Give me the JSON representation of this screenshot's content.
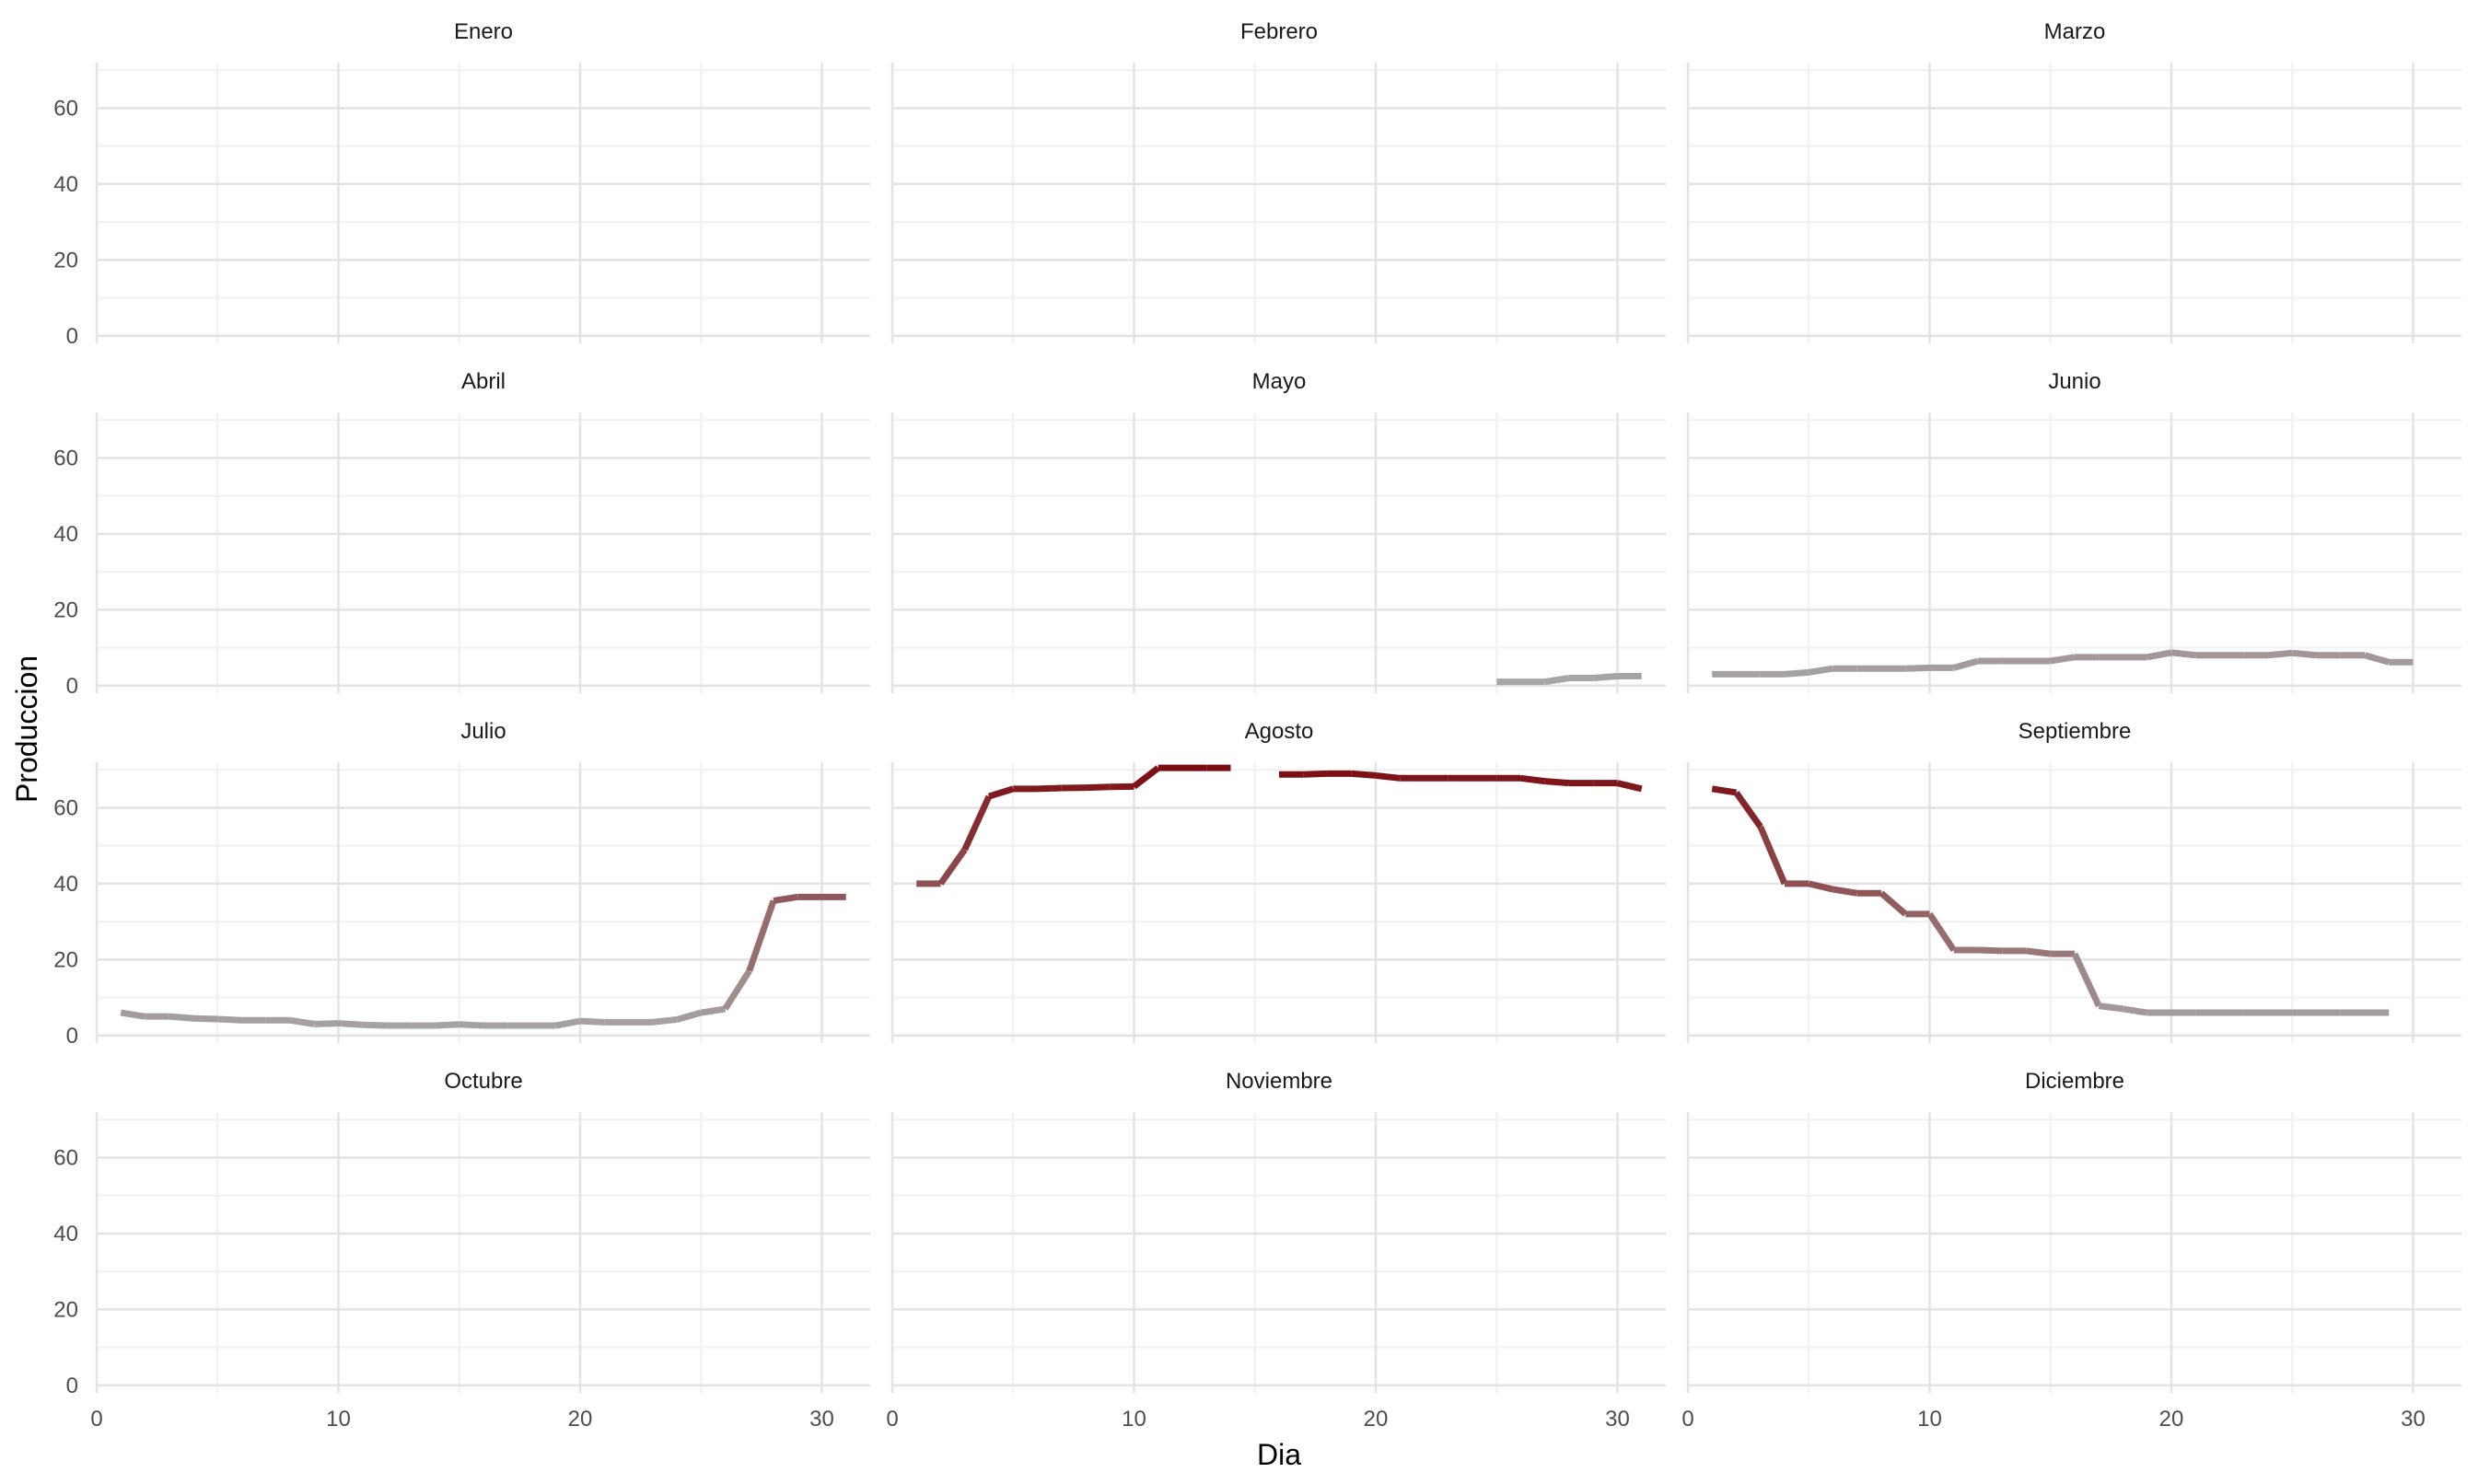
{
  "chart_data": {
    "type": "line",
    "facets": "wrap-3-columns",
    "xlabel": "Dia",
    "ylabel": "Produccion",
    "xlim": [
      0,
      32
    ],
    "ylim": [
      -2,
      72
    ],
    "x_ticks": [
      0,
      10,
      20,
      30
    ],
    "y_ticks": [
      0,
      20,
      40,
      60
    ],
    "grid": true,
    "color_scale": {
      "low": "#a8a8a8",
      "high": "#7a0c10",
      "domain": [
        0,
        71
      ]
    },
    "panels": [
      {
        "title": "Enero",
        "points": []
      },
      {
        "title": "Febrero",
        "points": []
      },
      {
        "title": "Marzo",
        "points": []
      },
      {
        "title": "Abril",
        "points": []
      },
      {
        "title": "Mayo",
        "points": [
          [
            25,
            1
          ],
          [
            26,
            1
          ],
          [
            27,
            1
          ],
          [
            28,
            2
          ],
          [
            29,
            2
          ],
          [
            30,
            2.5
          ],
          [
            31,
            2.5
          ]
        ]
      },
      {
        "title": "Junio",
        "points": [
          [
            1,
            3
          ],
          [
            2,
            3
          ],
          [
            3,
            3
          ],
          [
            4,
            3
          ],
          [
            5,
            3.5
          ],
          [
            6,
            4.5
          ],
          [
            7,
            4.5
          ],
          [
            8,
            4.5
          ],
          [
            9,
            4.5
          ],
          [
            10,
            4.7
          ],
          [
            11,
            4.7
          ],
          [
            12,
            6.5
          ],
          [
            13,
            6.5
          ],
          [
            14,
            6.5
          ],
          [
            15,
            6.5
          ],
          [
            16,
            7.5
          ],
          [
            17,
            7.5
          ],
          [
            18,
            7.5
          ],
          [
            19,
            7.5
          ],
          [
            20,
            8.7
          ],
          [
            21,
            8
          ],
          [
            22,
            8
          ],
          [
            23,
            8
          ],
          [
            24,
            8
          ],
          [
            25,
            8.6
          ],
          [
            26,
            8
          ],
          [
            27,
            8
          ],
          [
            28,
            8
          ],
          [
            29,
            6.2
          ],
          [
            30,
            6.2
          ]
        ]
      },
      {
        "title": "Julio",
        "points": [
          [
            1,
            6
          ],
          [
            2,
            5
          ],
          [
            3,
            5
          ],
          [
            4,
            4.5
          ],
          [
            5,
            4.3
          ],
          [
            6,
            4
          ],
          [
            7,
            4
          ],
          [
            8,
            4
          ],
          [
            9,
            3
          ],
          [
            10,
            3.2
          ],
          [
            11,
            2.8
          ],
          [
            12,
            2.6
          ],
          [
            13,
            2.6
          ],
          [
            14,
            2.6
          ],
          [
            15,
            2.9
          ],
          [
            16,
            2.6
          ],
          [
            17,
            2.6
          ],
          [
            18,
            2.6
          ],
          [
            19,
            2.6
          ],
          [
            20,
            3.8
          ],
          [
            21,
            3.5
          ],
          [
            22,
            3.5
          ],
          [
            23,
            3.5
          ],
          [
            24,
            4.2
          ],
          [
            25,
            6
          ],
          [
            26,
            7
          ],
          [
            27,
            17
          ],
          [
            28,
            35.5
          ],
          [
            29,
            36.5
          ],
          [
            30,
            36.5
          ],
          [
            31,
            36.5
          ]
        ]
      },
      {
        "title": "Agosto",
        "points": [
          [
            1,
            40
          ],
          [
            2,
            40
          ],
          [
            3,
            49
          ],
          [
            4,
            63
          ],
          [
            5,
            65
          ],
          [
            6,
            65
          ],
          [
            7,
            65.2
          ],
          [
            8,
            65.3
          ],
          [
            9,
            65.5
          ],
          [
            10,
            65.6
          ],
          [
            11,
            70.5
          ],
          [
            12,
            70.5
          ],
          [
            13,
            70.5
          ],
          [
            14,
            70.5
          ],
          [
            15,
            null
          ],
          [
            16,
            68.8
          ],
          [
            17,
            68.8
          ],
          [
            18,
            69
          ],
          [
            19,
            69
          ],
          [
            20,
            68.5
          ],
          [
            21,
            67.8
          ],
          [
            22,
            67.8
          ],
          [
            23,
            67.8
          ],
          [
            24,
            67.8
          ],
          [
            25,
            67.8
          ],
          [
            26,
            67.8
          ],
          [
            27,
            67
          ],
          [
            28,
            66.5
          ],
          [
            29,
            66.5
          ],
          [
            30,
            66.5
          ],
          [
            31,
            65
          ]
        ]
      },
      {
        "title": "Septiembre",
        "points": [
          [
            1,
            65
          ],
          [
            2,
            64
          ],
          [
            3,
            55
          ],
          [
            4,
            40
          ],
          [
            5,
            40
          ],
          [
            6,
            38.5
          ],
          [
            7,
            37.5
          ],
          [
            8,
            37.5
          ],
          [
            9,
            32
          ],
          [
            10,
            32
          ],
          [
            11,
            22.5
          ],
          [
            12,
            22.5
          ],
          [
            13,
            22.3
          ],
          [
            14,
            22.3
          ],
          [
            15,
            21.5
          ],
          [
            16,
            21.5
          ],
          [
            17,
            7.8
          ],
          [
            18,
            7
          ],
          [
            19,
            6
          ],
          [
            20,
            6
          ],
          [
            21,
            6
          ],
          [
            22,
            6
          ],
          [
            23,
            6
          ],
          [
            24,
            6
          ],
          [
            25,
            6
          ],
          [
            26,
            6
          ],
          [
            27,
            6
          ],
          [
            28,
            6
          ],
          [
            29,
            6
          ]
        ]
      },
      {
        "title": "Octubre",
        "points": []
      },
      {
        "title": "Noviembre",
        "points": []
      },
      {
        "title": "Diciembre",
        "points": []
      }
    ]
  }
}
